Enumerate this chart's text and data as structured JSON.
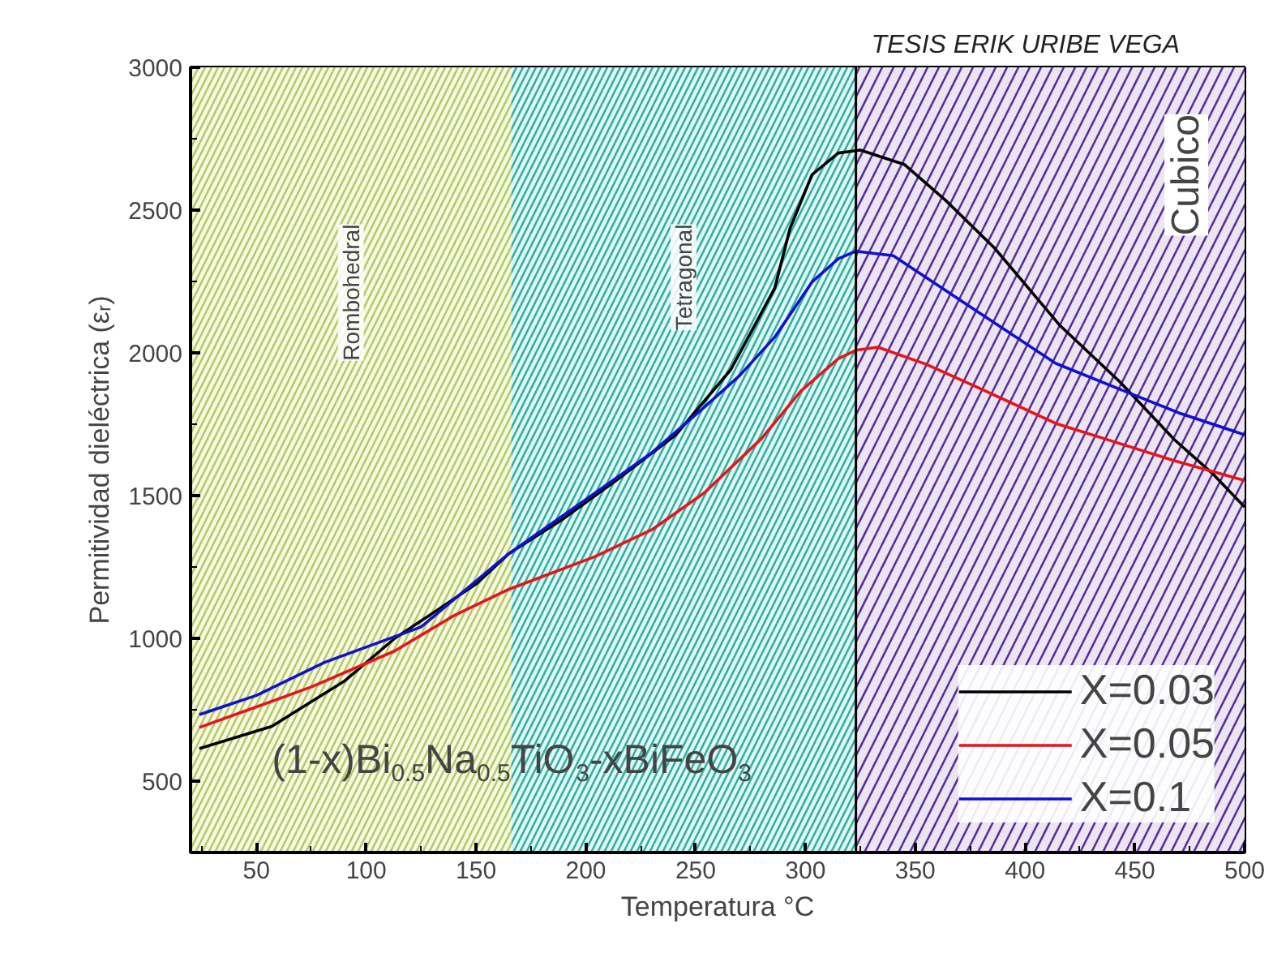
{
  "chart_data": {
    "type": "line",
    "xlabel": "Temperatura °C",
    "ylabel": "Permitividad dieléctrica (εᵣ)",
    "xlim": [
      20,
      500
    ],
    "ylim": [
      250,
      3000
    ],
    "xticks": [
      50,
      100,
      150,
      200,
      250,
      300,
      350,
      400,
      450,
      500
    ],
    "yticks": [
      500,
      1000,
      1500,
      2000,
      2500,
      3000
    ],
    "grid": false,
    "legend": "bottom right",
    "line_style": "solid",
    "marker": "none",
    "series": [
      {
        "name": "X=0.03",
        "color": "#000000",
        "x": [
          24,
          57,
          90,
          113,
          130,
          150,
          165,
          190,
          215,
          241,
          266,
          286,
          293,
          303,
          315,
          325,
          345,
          364,
          386,
          416,
          443,
          468,
          485,
          500
        ],
        "values": [
          614,
          692,
          850,
          1000,
          1087,
          1190,
          1297,
          1420,
          1560,
          1713,
          1941,
          2226,
          2436,
          2624,
          2700,
          2710,
          2660,
          2533,
          2368,
          2095,
          1900,
          1696,
          1580,
          1460
        ]
      },
      {
        "name": "X=0.05",
        "color": "#e8141c",
        "x": [
          24,
          50,
          75,
          113,
          140,
          165,
          204,
          230,
          254,
          280,
          298,
          315,
          323,
          333,
          355,
          377,
          414,
          440,
          468,
          500
        ],
        "values": [
          688,
          760,
          830,
          956,
          1080,
          1172,
          1286,
          1380,
          1510,
          1700,
          1867,
          1980,
          2009,
          2020,
          1960,
          1884,
          1753,
          1690,
          1622,
          1553
        ]
      },
      {
        "name": "X=0.1",
        "color": "#1010d0",
        "x": [
          24,
          50,
          81,
          125,
          165,
          204,
          230,
          254,
          270,
          286,
          303,
          315,
          323,
          340,
          377,
          414,
          445,
          470,
          500
        ],
        "values": [
          733,
          800,
          916,
          1040,
          1297,
          1508,
          1650,
          1810,
          1920,
          2055,
          2248,
          2330,
          2356,
          2340,
          2151,
          1963,
          1867,
          1790,
          1713
        ]
      }
    ],
    "bands": [
      {
        "axis": "x",
        "from": 20,
        "to": 166,
        "label": "Rombohedral",
        "color": "#b5cc5a"
      },
      {
        "axis": "x",
        "from": 166,
        "to": 323,
        "label": "Tetragonal",
        "color": "#2bb3a3"
      },
      {
        "axis": "x",
        "from": 323,
        "to": 500,
        "label": "Cubico",
        "color": "#5a2e9a"
      }
    ],
    "ref_lines": [
      {
        "axis": "x",
        "value": 323,
        "color": "#000000"
      }
    ],
    "annotations": [
      "(1-x)Bi$_{0.5}$Na$_{0.5}$TiO$_{3}$-xBiFeO$_{3}$",
      "TESIS ERIK URIBE VEGA"
    ]
  }
}
